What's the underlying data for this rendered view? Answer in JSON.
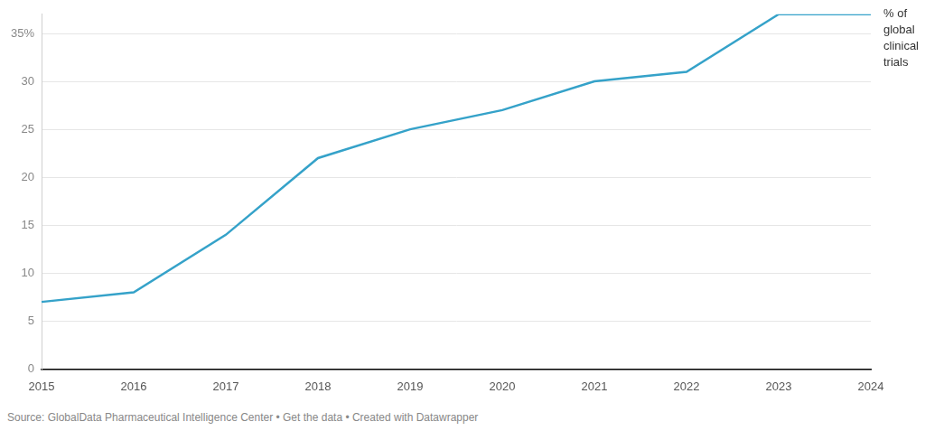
{
  "chart_data": {
    "type": "line",
    "categories": [
      "2015",
      "2016",
      "2017",
      "2018",
      "2019",
      "2020",
      "2021",
      "2022",
      "2023",
      "2024"
    ],
    "series": [
      {
        "name": "% of global clinical trials",
        "color": "#35a2c9",
        "values": [
          7,
          8,
          14,
          22,
          25,
          27,
          30,
          31,
          37,
          37
        ]
      }
    ],
    "ylim": [
      0,
      37
    ],
    "yticks": [
      0,
      5,
      10,
      15,
      20,
      25,
      30,
      {
        "value": 35,
        "label": "35%"
      }
    ],
    "grid": true,
    "source": "Source: GlobalData Pharmaceutical Intelligence Center • Get the data • Created with Datawrapper"
  }
}
